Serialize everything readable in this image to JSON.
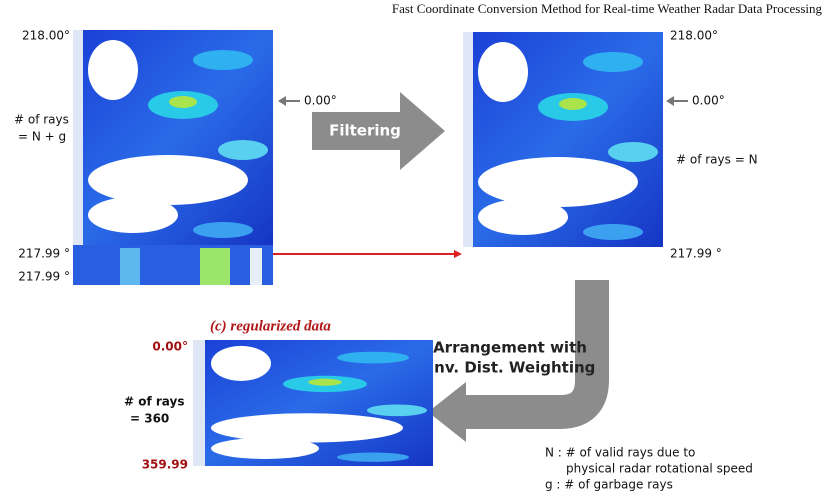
{
  "header": {
    "title": "Fast Coordinate Conversion Method for Real-time Weather Radar Data Processing"
  },
  "raw_panel": {
    "top_label": "218.00°",
    "zero_label": "0.00°",
    "rays_label": [
      "# of rays",
      "= N + g"
    ],
    "bottom_labels": [
      "217.99 °",
      "217.99 °"
    ]
  },
  "filter_arrow": {
    "label": "Filtering"
  },
  "filtered_panel": {
    "top_label": "218.00°",
    "zero_label": "0.00°",
    "rays_label": "# of rays = N",
    "bottom_label": "217.99 °"
  },
  "arrange_arrow": {
    "label": [
      "Arrangement with",
      "Inv. Dist. Weighting"
    ]
  },
  "regularized_panel": {
    "title": "(c) regularized data",
    "top_label": "0.00°",
    "rays_label": [
      "# of rays",
      "= 360"
    ],
    "bottom_label": "359.99"
  },
  "legend": {
    "lines": [
      "N : # of valid rays due to",
      "physical radar rotational speed",
      "g : # of garbage rays"
    ]
  }
}
